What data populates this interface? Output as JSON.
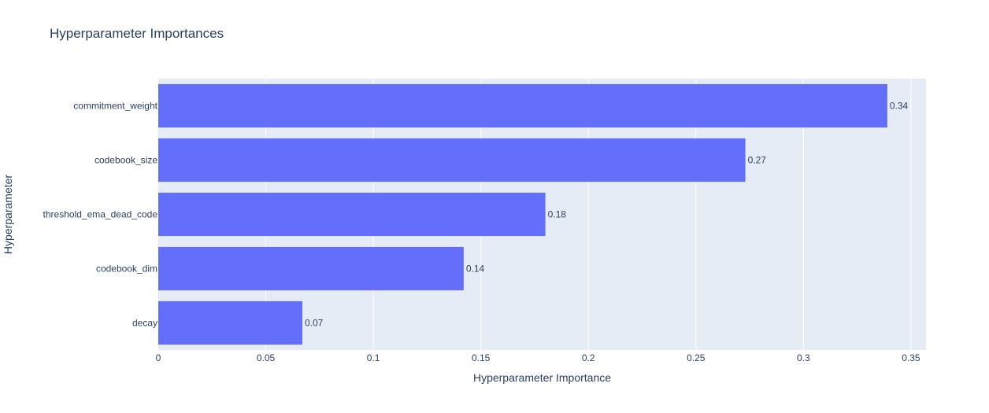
{
  "chart_data": {
    "type": "bar",
    "orientation": "horizontal",
    "title": "Hyperparameter Importances",
    "xlabel": "Hyperparameter Importance",
    "ylabel": "Hyperparameter",
    "categories": [
      "commitment_weight",
      "codebook_size",
      "threshold_ema_dead_code",
      "codebook_dim",
      "decay"
    ],
    "values": [
      0.339,
      0.273,
      0.18,
      0.142,
      0.067
    ],
    "data_labels": [
      "0.34",
      "0.27",
      "0.18",
      "0.14",
      "0.07"
    ],
    "xlim": [
      0,
      0.357
    ],
    "x_ticks": [
      0,
      0.05,
      0.1,
      0.15,
      0.2,
      0.25,
      0.3,
      0.35
    ],
    "x_tick_labels": [
      "0",
      "0.05",
      "0.1",
      "0.15",
      "0.2",
      "0.25",
      "0.3",
      "0.35"
    ],
    "grid": true,
    "colors": {
      "bar": "#636efa",
      "plot_background": "#e5ecf6",
      "grid": "#ffffff",
      "text": "#2a3f5f"
    }
  }
}
